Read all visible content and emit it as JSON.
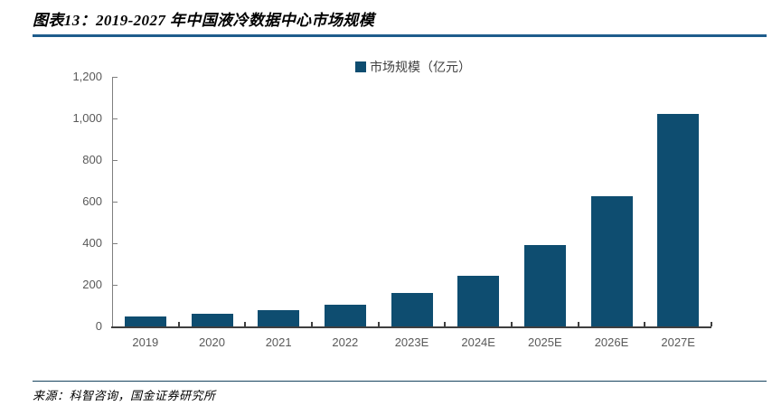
{
  "header": {
    "title": "图表13：2019-2027 年中国液冷数据中心市场规模"
  },
  "footer": {
    "source": "来源：科智咨询，国金证券研究所"
  },
  "colors": {
    "bar": "#0E4D70",
    "title_rule": "#1E5C8C",
    "footer_rule": "#16435F",
    "axis": "#7F7F7F",
    "axis_x": "#3F3F3F",
    "tick_label": "#595959",
    "legend_text": "#404040"
  },
  "chart_data": {
    "type": "bar",
    "title": "图表13：2019-2027 年中国液冷数据中心市场规模",
    "legend": "市场规模（亿元）",
    "unit": "亿元",
    "categories": [
      "2019",
      "2020",
      "2021",
      "2022",
      "2023E",
      "2024E",
      "2025E",
      "2026E",
      "2027E"
    ],
    "values": [
      50,
      60,
      80,
      105,
      160,
      245,
      390,
      625,
      1020
    ],
    "ylim": [
      0,
      1200
    ],
    "yticks": [
      0,
      200,
      400,
      600,
      800,
      1000,
      1200
    ],
    "ytick_labels": [
      "0",
      "200",
      "400",
      "600",
      "800",
      "1,000",
      "1,200"
    ],
    "grid": false,
    "legend_position": "top-center"
  }
}
